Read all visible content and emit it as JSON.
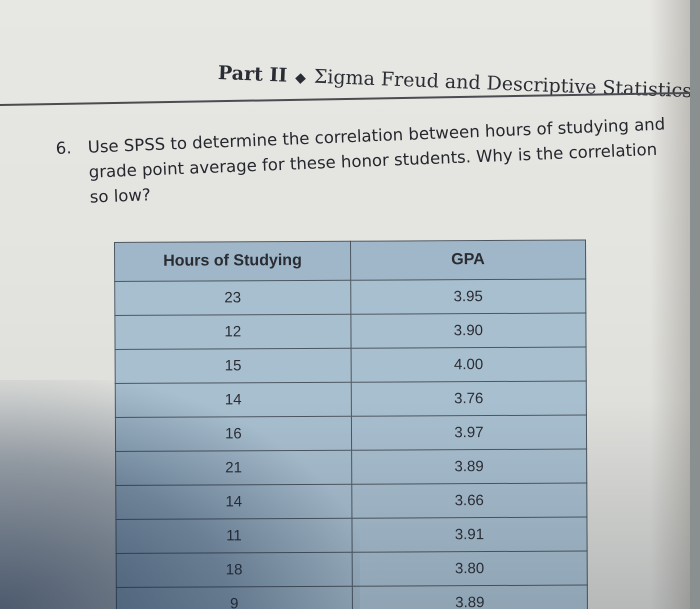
{
  "header": {
    "part": "Part II",
    "separator": "◆",
    "title": "Σigma Freud and Descriptive Statistics"
  },
  "question": {
    "number": "6.",
    "text": "Use SPSS to determine the correlation between hours of studying and grade point average for these honor students. Why is the correlation so low?"
  },
  "table": {
    "headers": [
      "Hours of Studying",
      "GPA"
    ],
    "rows": [
      [
        "23",
        "3.95"
      ],
      [
        "12",
        "3.90"
      ],
      [
        "15",
        "4.00"
      ],
      [
        "14",
        "3.76"
      ],
      [
        "16",
        "3.97"
      ],
      [
        "21",
        "3.89"
      ],
      [
        "14",
        "3.66"
      ],
      [
        "11",
        "3.91"
      ],
      [
        "18",
        "3.80"
      ],
      [
        "9",
        "3.89"
      ]
    ]
  },
  "colors": {
    "table_fill": "#a8bfcf",
    "table_header_fill": "#9fb7c8",
    "table_border": "#4b5660",
    "page": "#e5e5e1",
    "text": "#25272e"
  }
}
